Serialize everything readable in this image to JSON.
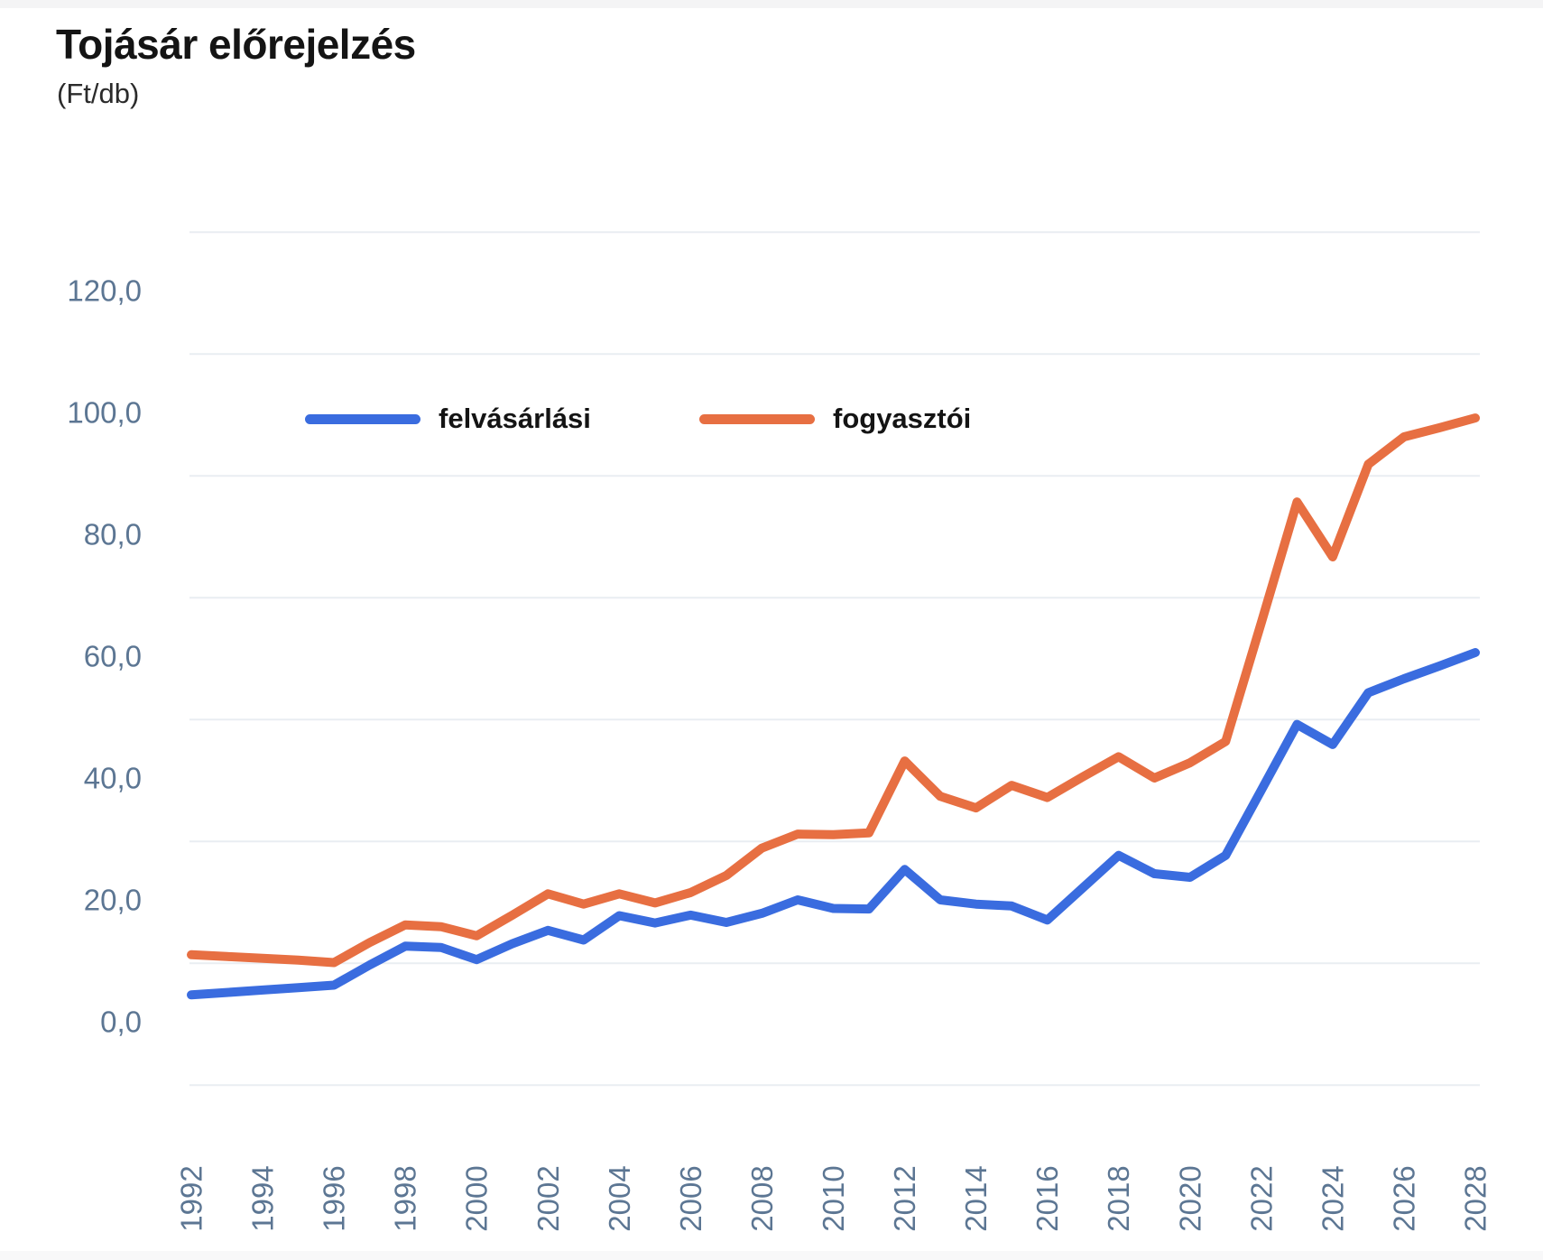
{
  "header": {
    "title": "Tojásár előrejelzés",
    "subtitle": "(Ft/db)"
  },
  "legend": {
    "items": [
      {
        "label": "felvásárlási",
        "color": "#3A6CDF"
      },
      {
        "label": "fogyasztói",
        "color": "#E76F42"
      }
    ]
  },
  "colors": {
    "blue_series": "#3A6CDF",
    "orange_series": "#E76F42",
    "axis_label": "#5c7693",
    "gridline": "#e9edf2",
    "title_text": "#141414"
  },
  "chart_data": {
    "type": "line",
    "title": "Tojásár előrejelzés",
    "ylabel": "Ft/db",
    "xlabel": "",
    "grid": true,
    "legend_position": "top-inside",
    "ylim": [
      0,
      120
    ],
    "x": [
      1992,
      1993,
      1994,
      1995,
      1996,
      1997,
      1998,
      1999,
      2000,
      2001,
      2002,
      2003,
      2004,
      2005,
      2006,
      2007,
      2008,
      2009,
      2010,
      2011,
      2012,
      2013,
      2014,
      2015,
      2016,
      2017,
      2018,
      2019,
      2020,
      2021,
      2022,
      2023,
      2024,
      2025,
      2026,
      2027,
      2028
    ],
    "x_tick_labels": [
      "1992",
      "1994",
      "1996",
      "1998",
      "2000",
      "2002",
      "2004",
      "2006",
      "2008",
      "2010",
      "2012",
      "2014",
      "2016",
      "2018",
      "2020",
      "2022",
      "2024",
      "2026",
      "2028"
    ],
    "y_tick_values": [
      0,
      20,
      40,
      60,
      80,
      100,
      120
    ],
    "y_tick_labels": [
      "0,0",
      "20,0",
      "40,0",
      "60,0",
      "80,0",
      "100,0",
      "120,0"
    ],
    "series": [
      {
        "name": "felvásárlási",
        "color": "#3A6CDF",
        "values": [
          4.4,
          4.8,
          5.2,
          5.6,
          6.0,
          9.3,
          12.4,
          12.2,
          10.2,
          12.8,
          15.0,
          13.4,
          17.4,
          16.2,
          17.5,
          16.3,
          17.8,
          20.0,
          18.6,
          18.5,
          25.0,
          20.0,
          19.3,
          19.0,
          16.7,
          22.0,
          27.3,
          24.3,
          23.7,
          27.3,
          38.0,
          48.8,
          45.5,
          54.0,
          56.3,
          58.4,
          60.6
        ]
      },
      {
        "name": "fogyasztói",
        "color": "#E76F42",
        "values": [
          11.0,
          10.7,
          10.4,
          10.1,
          9.7,
          13.0,
          15.9,
          15.6,
          14.1,
          17.5,
          21.0,
          19.3,
          21.0,
          19.5,
          21.2,
          24.0,
          28.5,
          30.8,
          30.7,
          31.0,
          42.8,
          37.0,
          35.1,
          38.8,
          36.8,
          40.2,
          43.5,
          40.0,
          42.5,
          46.0,
          65.5,
          85.3,
          76.3,
          91.5,
          96.0,
          97.5,
          99.1
        ]
      }
    ]
  }
}
